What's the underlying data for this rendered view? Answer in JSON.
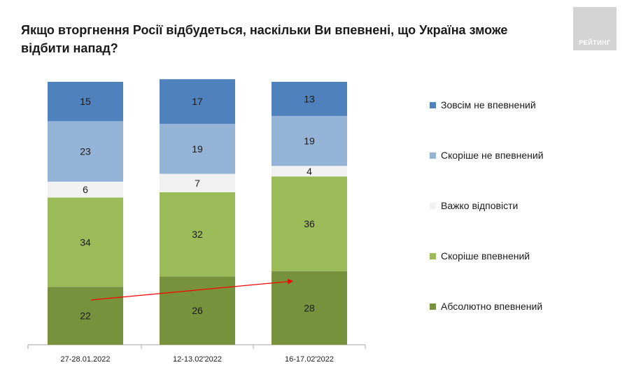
{
  "title": "Якщо вторгнення Росії відбудеться, наскільки Ви впевнені, що Україна зможе відбити напад?",
  "logo_text": "РЕЙТИНГ",
  "chart_data": {
    "type": "bar",
    "stacked": true,
    "categories": [
      "27-28.01.2022",
      "12-13.02'2022",
      "16-17.02'2022"
    ],
    "series": [
      {
        "name": "Абсолютно впевнений",
        "color": "#76923c",
        "values": [
          22,
          26,
          28
        ]
      },
      {
        "name": "Скоріше впевнений",
        "color": "#9bbb59",
        "values": [
          34,
          32,
          36
        ]
      },
      {
        "name": "Важко відповісти",
        "color": "#f2f2f2",
        "values": [
          6,
          7,
          4
        ]
      },
      {
        "name": "Скоріше не впевнений",
        "color": "#95b3d7",
        "values": [
          23,
          19,
          19
        ]
      },
      {
        "name": "Зовсім не впевнений",
        "color": "#4f81bd",
        "values": [
          15,
          17,
          13
        ]
      }
    ],
    "legend_order": [
      "Зовсім не впевнений",
      "Скоріше не впевнений",
      "Важко відповісти",
      "Скоріше впевнений",
      "Абсолютно впевнений"
    ],
    "legend_position": "right",
    "ylim": [
      0,
      100
    ],
    "grid": false,
    "annotation": {
      "type": "arrow",
      "color": "#ff0000",
      "from_category": "27-28.01.2022",
      "to_category": "16-17.02'2022",
      "series": "Абсолютно впевнений"
    }
  }
}
